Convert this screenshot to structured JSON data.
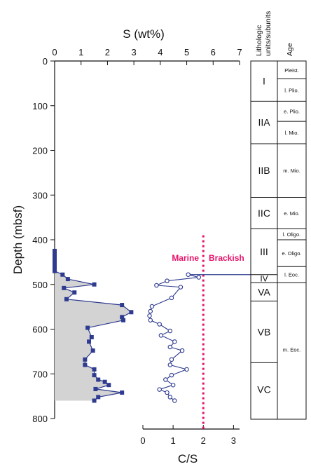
{
  "chart_data": {
    "type": "line",
    "ylabel": "Depth (mbsf)",
    "y_ticks": [
      "0",
      "100",
      "200",
      "300",
      "400",
      "500",
      "600",
      "700",
      "800"
    ],
    "ylim": [
      0,
      800
    ],
    "sulfur": {
      "xlabel": "S (wt%)",
      "x_ticks": [
        "0",
        "1",
        "2",
        "3",
        "4",
        "5",
        "6",
        "7"
      ],
      "xlim": [
        0,
        7
      ],
      "series": {
        "values": [
          {
            "x": 0.0,
            "y": 425
          },
          {
            "x": 0.0,
            "y": 432
          },
          {
            "x": 0.0,
            "y": 440
          },
          {
            "x": 0.0,
            "y": 447
          },
          {
            "x": 0.0,
            "y": 455
          },
          {
            "x": 0.0,
            "y": 462
          },
          {
            "x": 0.0,
            "y": 470
          },
          {
            "x": 0.3,
            "y": 478
          },
          {
            "x": 0.5,
            "y": 488
          },
          {
            "x": 1.5,
            "y": 500
          },
          {
            "x": 0.35,
            "y": 508
          },
          {
            "x": 0.75,
            "y": 518
          },
          {
            "x": 0.45,
            "y": 533
          },
          {
            "x": 2.55,
            "y": 546
          },
          {
            "x": 2.9,
            "y": 562
          },
          {
            "x": 2.55,
            "y": 573
          },
          {
            "x": 2.6,
            "y": 580
          },
          {
            "x": 1.25,
            "y": 597
          },
          {
            "x": 1.4,
            "y": 618
          },
          {
            "x": 1.3,
            "y": 628
          },
          {
            "x": 1.45,
            "y": 648
          },
          {
            "x": 1.15,
            "y": 668
          },
          {
            "x": 1.15,
            "y": 680
          },
          {
            "x": 1.5,
            "y": 690
          },
          {
            "x": 1.5,
            "y": 703
          },
          {
            "x": 1.65,
            "y": 713
          },
          {
            "x": 1.9,
            "y": 718
          },
          {
            "x": 2.05,
            "y": 725
          },
          {
            "x": 1.55,
            "y": 734
          },
          {
            "x": 2.55,
            "y": 742
          },
          {
            "x": 1.65,
            "y": 752
          },
          {
            "x": 1.5,
            "y": 760
          }
        ]
      }
    },
    "cs_ratio": {
      "xlabel": "C/S",
      "x_ticks": [
        "0",
        "1",
        "2",
        "3"
      ],
      "xlim": [
        0,
        3.2
      ],
      "series": {
        "values": [
          {
            "x": 1.5,
            "y": 478
          },
          {
            "x": 1.85,
            "y": 484
          },
          {
            "x": 0.8,
            "y": 492
          },
          {
            "x": 0.45,
            "y": 502
          },
          {
            "x": 1.25,
            "y": 506
          },
          {
            "x": 0.95,
            "y": 530
          },
          {
            "x": 0.3,
            "y": 549
          },
          {
            "x": 0.25,
            "y": 560
          },
          {
            "x": 0.22,
            "y": 570
          },
          {
            "x": 0.25,
            "y": 580
          },
          {
            "x": 0.55,
            "y": 589
          },
          {
            "x": 0.9,
            "y": 604
          },
          {
            "x": 0.6,
            "y": 614
          },
          {
            "x": 1.05,
            "y": 628
          },
          {
            "x": 0.9,
            "y": 640
          },
          {
            "x": 1.3,
            "y": 648
          },
          {
            "x": 0.95,
            "y": 668
          },
          {
            "x": 0.9,
            "y": 680
          },
          {
            "x": 1.45,
            "y": 690
          },
          {
            "x": 0.95,
            "y": 703
          },
          {
            "x": 0.75,
            "y": 713
          },
          {
            "x": 1.0,
            "y": 725
          },
          {
            "x": 0.55,
            "y": 735
          },
          {
            "x": 0.8,
            "y": 742
          },
          {
            "x": 0.9,
            "y": 752
          },
          {
            "x": 1.05,
            "y": 760
          }
        ]
      },
      "threshold": {
        "x": 2,
        "label_left": "Marine",
        "label_right": "Brackish",
        "color": "#e8116a"
      }
    },
    "series_color": "#2e3b8f",
    "fill_color": "#d3d3d3",
    "boundary_depth": 478
  },
  "strat": {
    "header_units": [
      "Lithologic",
      "units/subunits"
    ],
    "header_age": "Age",
    "units": [
      {
        "label": "I",
        "top": 0,
        "bottom": 90
      },
      {
        "label": "IIA",
        "top": 90,
        "bottom": 185
      },
      {
        "label": "IIB",
        "top": 185,
        "bottom": 305
      },
      {
        "label": "IIC",
        "top": 305,
        "bottom": 375
      },
      {
        "label": "III",
        "top": 375,
        "bottom": 478
      },
      {
        "label": "IV",
        "top": 478,
        "bottom": 496
      },
      {
        "label": "VA",
        "top": 496,
        "bottom": 537
      },
      {
        "label": "VB",
        "top": 537,
        "bottom": 675
      },
      {
        "label": "VC",
        "top": 675,
        "bottom": 795
      }
    ],
    "ages": [
      {
        "label": "Pleist.",
        "top": 0,
        "bottom": 40
      },
      {
        "label": "l. Plio.",
        "top": 40,
        "bottom": 90
      },
      {
        "label": "e. Plio.",
        "top": 90,
        "bottom": 135
      },
      {
        "label": "l. Mio.",
        "top": 135,
        "bottom": 185
      },
      {
        "label": "m. Mio.",
        "top": 185,
        "bottom": 305
      },
      {
        "label": "e. Mio.",
        "top": 305,
        "bottom": 375
      },
      {
        "label": "l. Oligo.",
        "top": 375,
        "bottom": 400
      },
      {
        "label": "e. Oligo.",
        "top": 400,
        "bottom": 460
      },
      {
        "label": "l. Eoc.",
        "top": 460,
        "bottom": 496
      },
      {
        "label": "m. Eoc.",
        "top": 496,
        "bottom": 795
      }
    ]
  }
}
